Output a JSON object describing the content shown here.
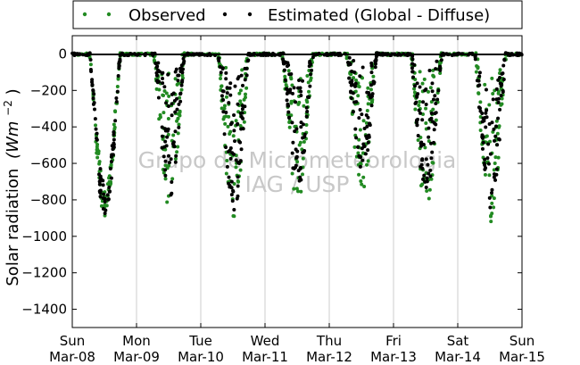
{
  "chart_data": {
    "type": "scatter",
    "title": "",
    "ylabel": "Solar radiation",
    "ylabel_unit": "(Wm",
    "ylabel_exp": "−2",
    "ylabel_close": ")",
    "ylim": [
      -1500,
      100
    ],
    "yticks": [
      0,
      -200,
      -400,
      -600,
      -800,
      -1000,
      -1200,
      -1400
    ],
    "xlim_days": [
      0,
      7
    ],
    "xtick_labels": [
      {
        "day": "Sun",
        "date": "Mar-08"
      },
      {
        "day": "Mon",
        "date": "Mar-09"
      },
      {
        "day": "Tue",
        "date": "Mar-10"
      },
      {
        "day": "Wed",
        "date": "Mar-11"
      },
      {
        "day": "Thu",
        "date": "Mar-12"
      },
      {
        "day": "Fri",
        "date": "Mar-13"
      },
      {
        "day": "Sat",
        "date": "Mar-14"
      },
      {
        "day": "Sun",
        "date": "Mar-15"
      }
    ],
    "grid": "vertical",
    "legend_placement": "top",
    "watermark": [
      "Grupo de Micrometeorologia",
      "IAG / USP"
    ],
    "series": [
      {
        "name": "Observed",
        "color": "#228b22",
        "daily_min": [
          -880,
          -830,
          -900,
          -810,
          -730,
          -830,
          -900
        ]
      },
      {
        "name": "Estimated (Global - Diffuse)",
        "color": "#000000",
        "daily_min": [
          -890,
          -780,
          -850,
          -720,
          -630,
          -760,
          -840
        ]
      }
    ]
  }
}
